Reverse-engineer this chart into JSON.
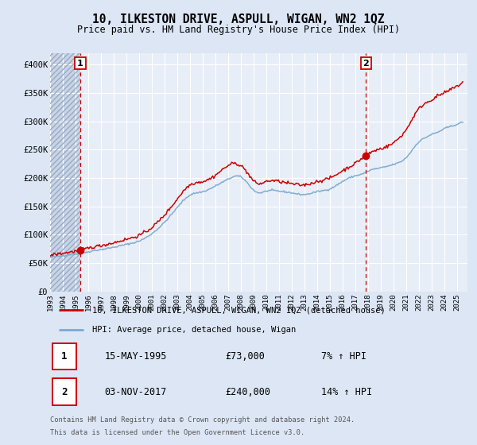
{
  "title": "10, ILKESTON DRIVE, ASPULL, WIGAN, WN2 1QZ",
  "subtitle": "Price paid vs. HM Land Registry's House Price Index (HPI)",
  "ylabel_ticks": [
    "£0",
    "£50K",
    "£100K",
    "£150K",
    "£200K",
    "£250K",
    "£300K",
    "£350K",
    "£400K"
  ],
  "ytick_vals": [
    0,
    50000,
    100000,
    150000,
    200000,
    250000,
    300000,
    350000,
    400000
  ],
  "ylim": [
    0,
    420000
  ],
  "xlim_start": 1993.0,
  "xlim_end": 2025.83,
  "sale1_date": "15-MAY-1995",
  "sale1_price": 73000,
  "sale1_label": "7% ↑ HPI",
  "sale2_date": "03-NOV-2017",
  "sale2_price": 240000,
  "sale2_label": "14% ↑ HPI",
  "sale1_x": 1995.37,
  "sale2_x": 2017.84,
  "legend_line1": "10, ILKESTON DRIVE, ASPULL, WIGAN, WN2 1QZ (detached house)",
  "legend_line2": "HPI: Average price, detached house, Wigan",
  "footer1": "Contains HM Land Registry data © Crown copyright and database right 2024.",
  "footer2": "This data is licensed under the Open Government Licence v3.0.",
  "bg_color": "#dce6f5",
  "plot_bg": "#e8eef7",
  "red_color": "#cc0000",
  "blue_color": "#7aaad0",
  "grid_color": "#ffffff",
  "hatch_bg": "#c8d4e8"
}
